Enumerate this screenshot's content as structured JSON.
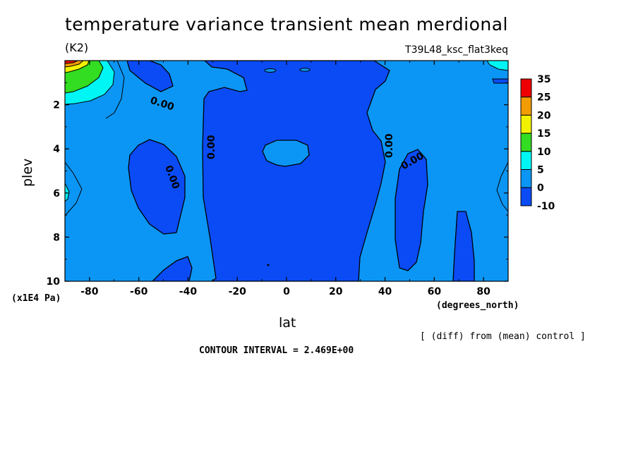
{
  "title": "temperature variance transient mean merdional",
  "units": "(K2)",
  "run_label": "T39L48_ksc_flat3keq",
  "x_unit": "(degrees_north)",
  "y_unit": "(x1E4 Pa)",
  "x_label": "lat",
  "y_label": "plev",
  "diff_note": "[ (diff) from (mean) control ]",
  "contour_interval_label": "CONTOUR INTERVAL = 2.469E+00",
  "colors": {
    "-10": "#0a4bf5",
    "0": "#0b96f5",
    "5": "#00f5f5",
    "10": "#33dd22",
    "15": "#f2f200",
    "25": "#f29c00",
    "35": "#ee0000"
  },
  "chart_data": {
    "type": "heatmap",
    "xlabel": "lat",
    "ylabel": "plev",
    "xlim": [
      -90,
      90
    ],
    "ylim": [
      10,
      0
    ],
    "x_ticks": [
      "-80",
      "-60",
      "-40",
      "-20",
      "0",
      "20",
      "40",
      "60",
      "80"
    ],
    "y_ticks": [
      "2",
      "4",
      "6",
      "8",
      "10"
    ],
    "colorbar": {
      "levels": [
        "35",
        "25",
        "20",
        "15",
        "10",
        "5",
        "0",
        "-10"
      ],
      "colors": [
        "#ee0000",
        "#f29c00",
        "#f2f200",
        "#33dd22",
        "#00f5f5",
        "#0b96f5",
        "#0a4bf5"
      ]
    },
    "contour_labels": [
      "0.00",
      "0.00",
      "0.00",
      "0.00",
      "0.00",
      "0.00"
    ],
    "contour_interval": 2.469
  }
}
